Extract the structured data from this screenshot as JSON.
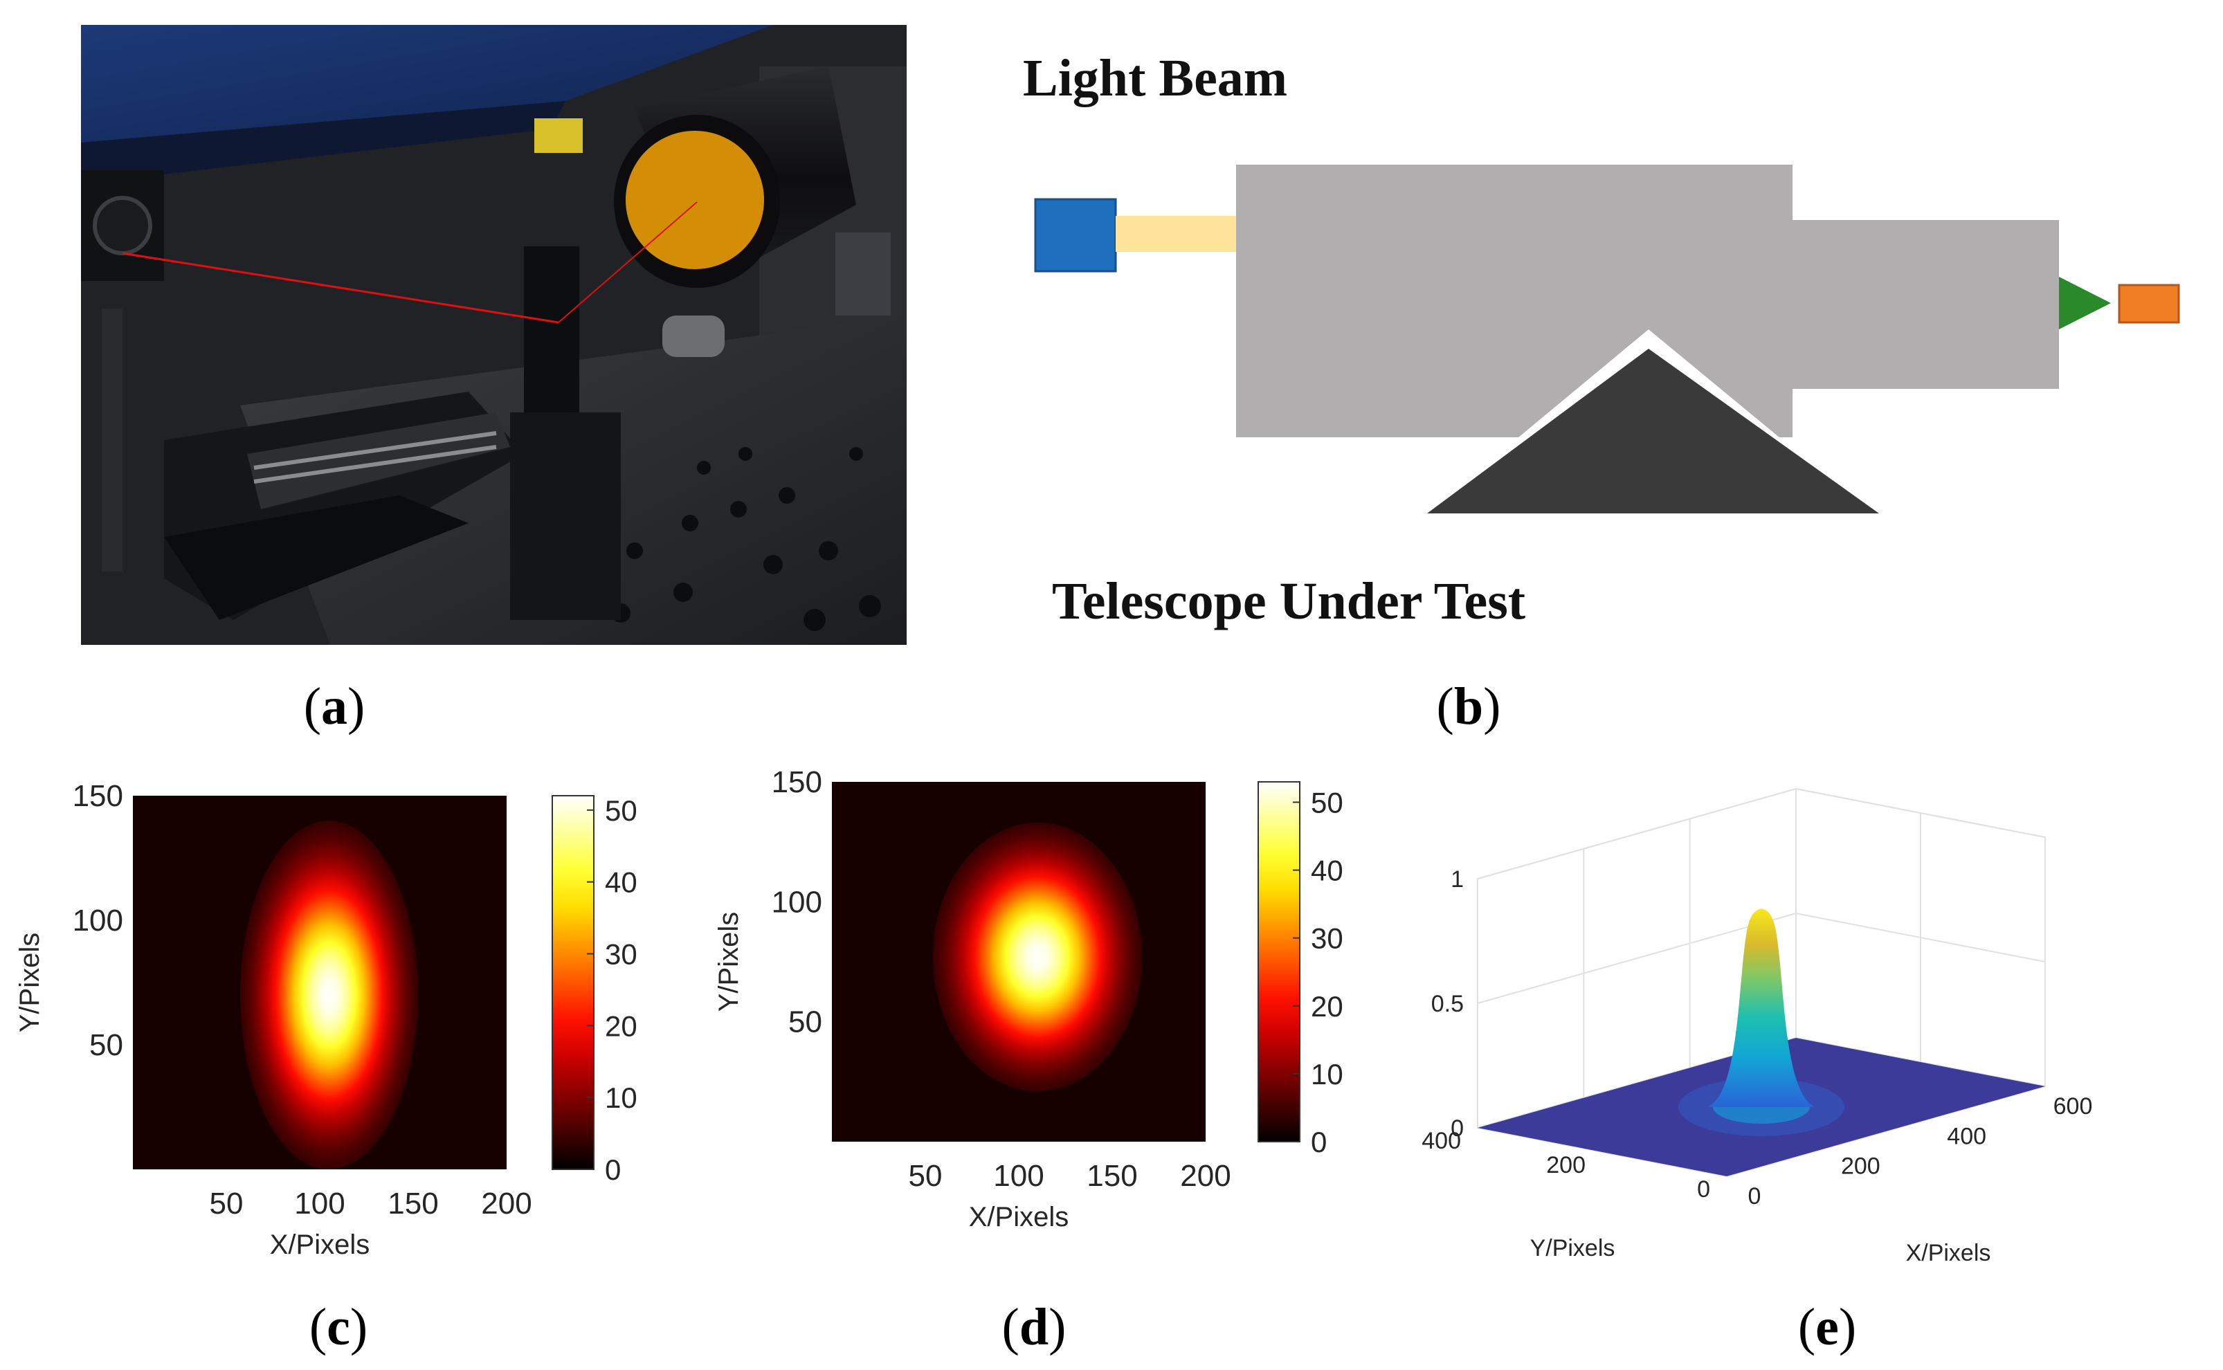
{
  "figure": {
    "panels": [
      {
        "id": "a",
        "label": "a"
      },
      {
        "id": "b",
        "label": "b"
      },
      {
        "id": "c",
        "label": "c"
      },
      {
        "id": "d",
        "label": "d"
      },
      {
        "id": "e",
        "label": "e"
      }
    ]
  },
  "diagram_b": {
    "top_label": "Light Beam",
    "bottom_label": "Telescope Under Test",
    "colors": {
      "source": "#1f6fbf",
      "beam": "#fde49a",
      "telescope": "#b0aeae",
      "mount": "#3a3a3a",
      "cone": "#2a8a2a",
      "detector": "#f07e22"
    }
  },
  "chart_data": [
    {
      "type": "heatmap",
      "panel": "c",
      "xlabel": "X/Pixels",
      "ylabel": "Y/Pixels",
      "xlim": [
        0,
        200
      ],
      "ylim": [
        0,
        150
      ],
      "xticks": [
        50,
        100,
        150,
        200
      ],
      "yticks": [
        50,
        100,
        150
      ],
      "spot_center": [
        105,
        70
      ],
      "spot_sigma": [
        17,
        25
      ],
      "colorbar": {
        "ticks": [
          0,
          10,
          20,
          30,
          40,
          50
        ],
        "max": 52,
        "colormap": "hot"
      }
    },
    {
      "type": "heatmap",
      "panel": "d",
      "xlabel": "X/Pixels",
      "ylabel": "Y/Pixels",
      "xlim": [
        0,
        200
      ],
      "ylim": [
        0,
        150
      ],
      "xticks": [
        50,
        100,
        150,
        200
      ],
      "yticks": [
        50,
        100,
        150
      ],
      "spot_center": [
        110,
        77
      ],
      "spot_sigma": [
        20,
        20
      ],
      "colorbar": {
        "ticks": [
          0,
          10,
          20,
          30,
          40,
          50
        ],
        "max": 53,
        "colormap": "hot"
      }
    },
    {
      "type": "surface",
      "panel": "e",
      "xlabel": "X/Pixels",
      "ylabel": "Y/Pixels",
      "xlim": [
        0,
        600
      ],
      "ylim": [
        0,
        400
      ],
      "zlim": [
        0,
        1
      ],
      "xticks": [
        0,
        200,
        400,
        600
      ],
      "yticks": [
        0,
        200,
        400
      ],
      "zticks": [
        0,
        0.5,
        1
      ],
      "peak": {
        "x": 300,
        "y": 200,
        "z": 0.82
      },
      "colormap": "parula"
    }
  ]
}
